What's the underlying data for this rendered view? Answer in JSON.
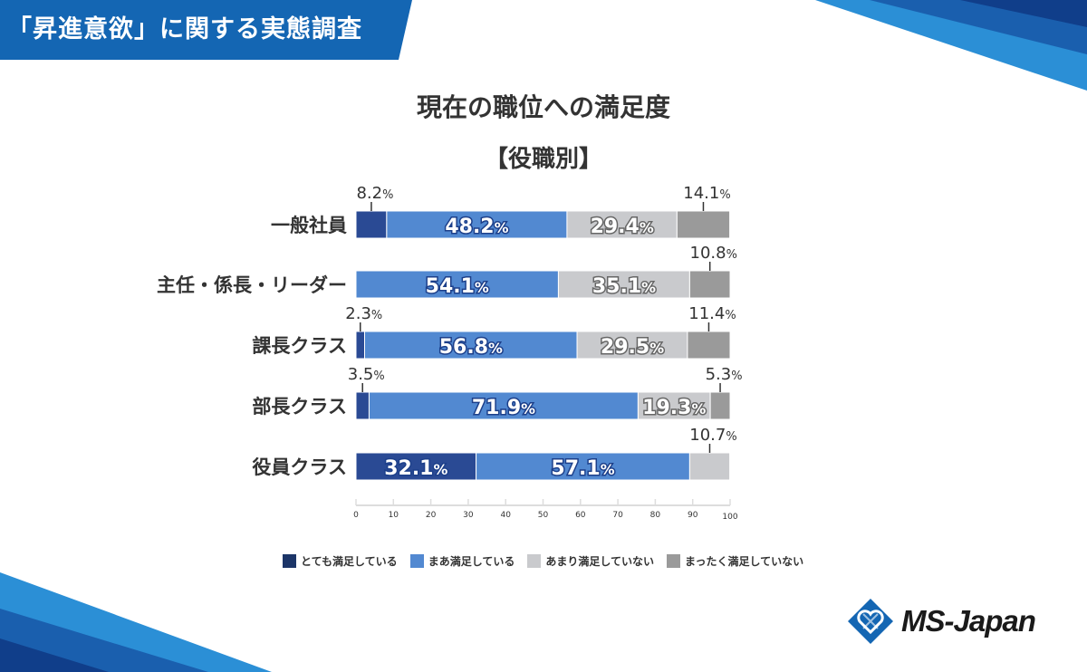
{
  "banner": {
    "title": "「昇進意欲」に関する実態調査"
  },
  "chart_data": {
    "type": "bar",
    "orientation": "horizontal",
    "stacked": true,
    "title": "現在の職位への満足度",
    "subtitle": "【役職別】",
    "categories": [
      "一般社員",
      "主任・係長・リーダー",
      "課長クラス",
      "部長クラス",
      "役員クラス"
    ],
    "series": [
      {
        "name": "とても満足している",
        "color": "#2a4a94",
        "legend_color": "#1c3568",
        "values": [
          8.2,
          0,
          2.3,
          3.5,
          32.1
        ]
      },
      {
        "name": "まあ満足している",
        "color": "#5289d1",
        "legend_color": "#5289d1",
        "values": [
          48.2,
          54.1,
          56.8,
          71.9,
          57.1
        ]
      },
      {
        "name": "あまり満足していない",
        "color": "#c9cacd",
        "legend_color": "#c9cacd",
        "values": [
          29.4,
          35.1,
          29.5,
          19.3,
          10.7
        ]
      },
      {
        "name": "まったく満足していない",
        "color": "#9a9a9a",
        "legend_color": "#9a9a9a",
        "values": [
          14.1,
          10.8,
          11.4,
          5.3,
          0
        ]
      }
    ],
    "xlim": [
      0,
      100
    ],
    "xticks": [
      "0",
      "10",
      "20",
      "30",
      "40",
      "50",
      "60",
      "70",
      "80",
      "90",
      "100"
    ],
    "unit": "%",
    "legend_position": "bottom",
    "grid": false
  },
  "logo": {
    "text": "MS-Japan"
  }
}
